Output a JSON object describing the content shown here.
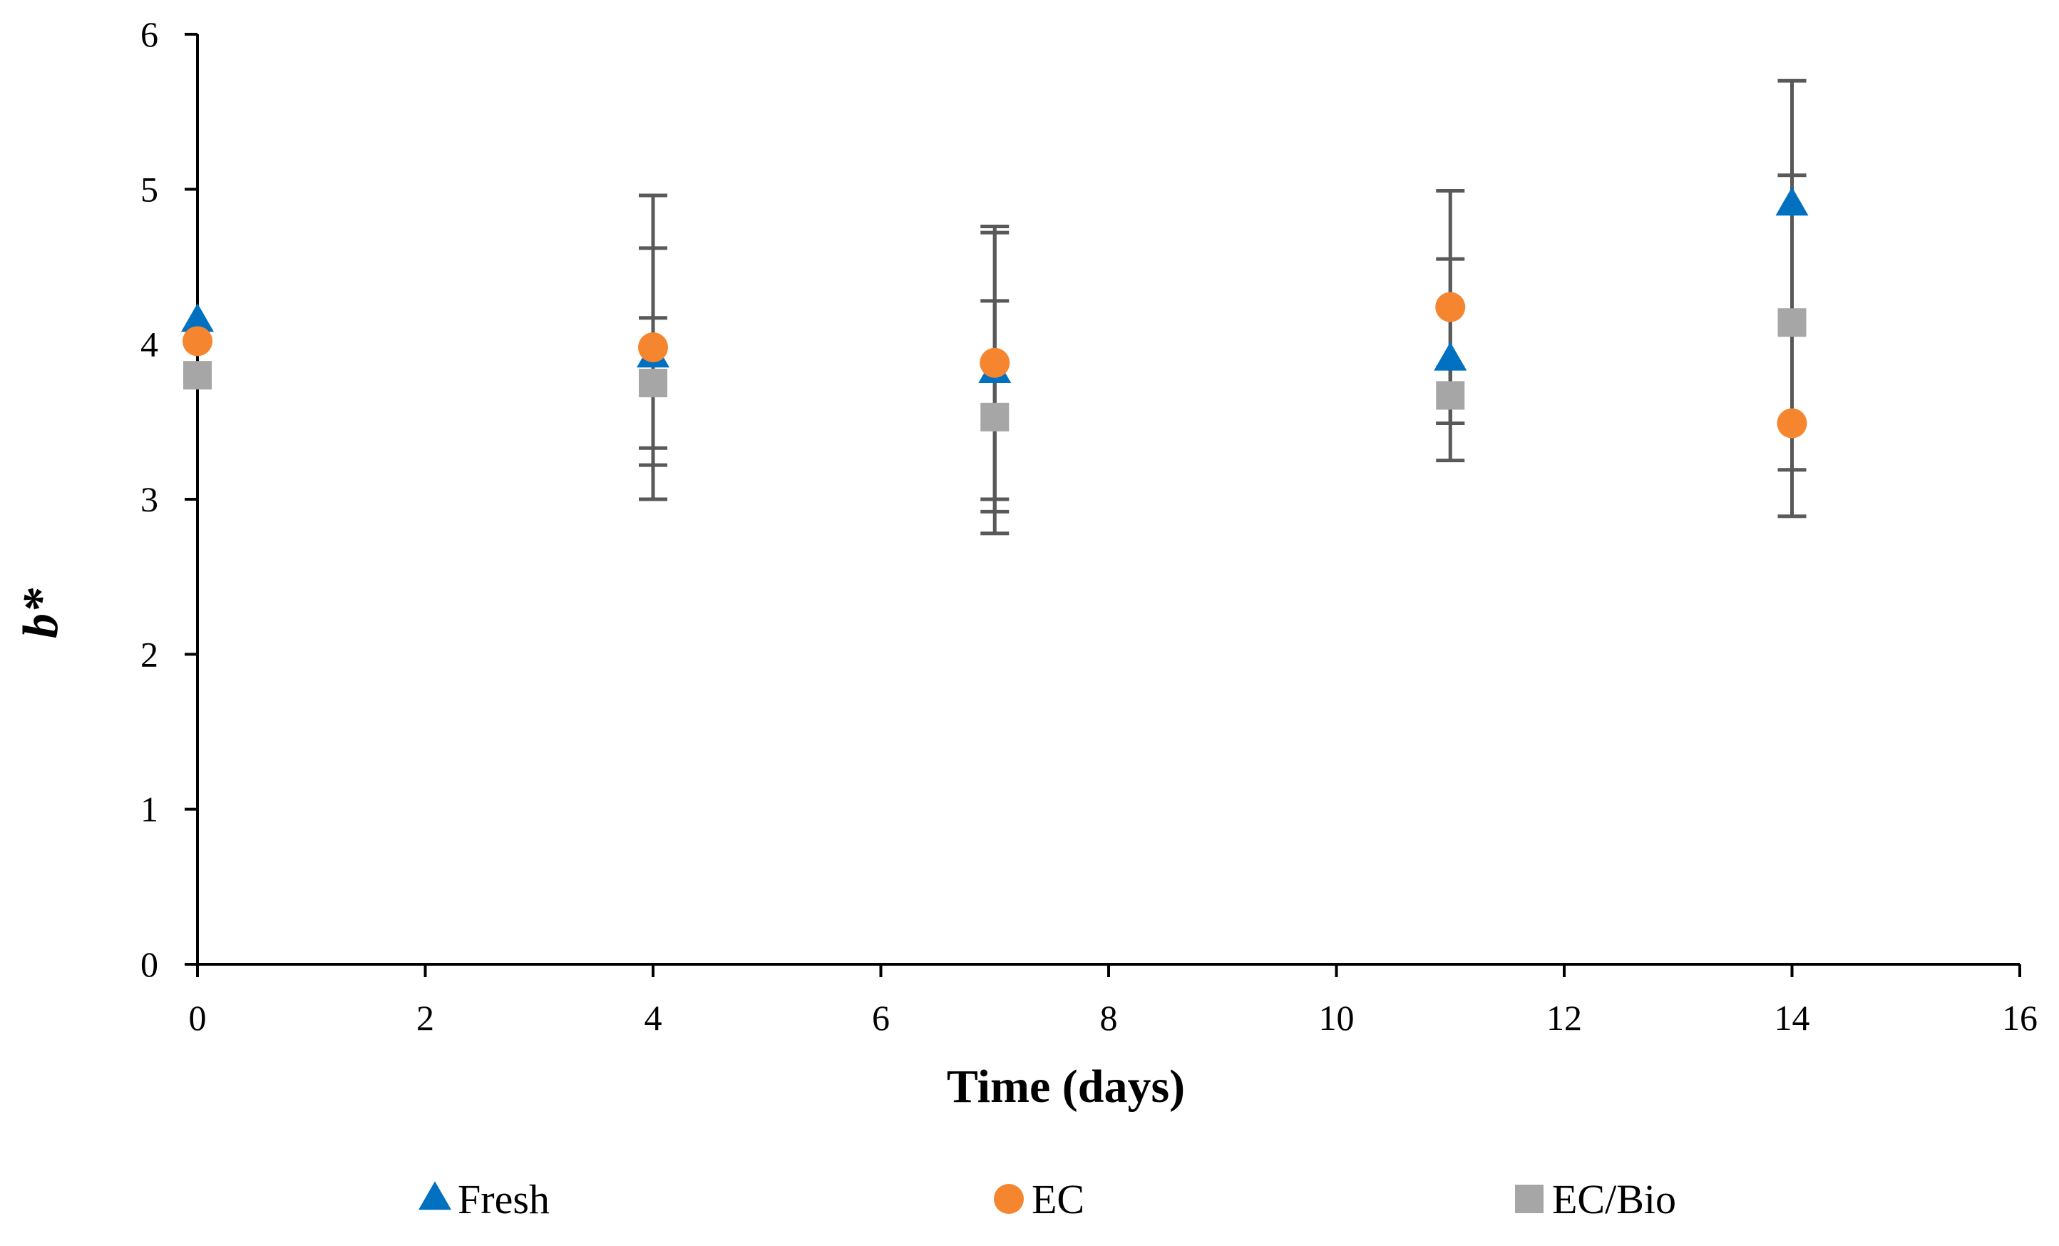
{
  "chart_data": {
    "type": "scatter",
    "title": "",
    "xlabel": "Time (days)",
    "ylabel": "b*",
    "xlim": [
      0,
      16
    ],
    "ylim": [
      0,
      6
    ],
    "x_ticks": [
      0,
      2,
      4,
      6,
      8,
      10,
      12,
      14,
      16
    ],
    "y_ticks": [
      0,
      1,
      2,
      3,
      4,
      5,
      6
    ],
    "grid": false,
    "legend_position": "bottom",
    "series": [
      {
        "name": "Fresh",
        "marker": "triangle",
        "color": "#0070C0",
        "x": [
          0,
          4,
          7,
          11,
          14
        ],
        "y": [
          4.15,
          3.92,
          3.82,
          3.9,
          4.9
        ],
        "error": [
          0.0,
          0.7,
          0.9,
          0.65,
          0.8
        ]
      },
      {
        "name": "EC",
        "marker": "circle",
        "color": "#F5852F",
        "x": [
          0,
          4,
          7,
          11,
          14
        ],
        "y": [
          4.02,
          3.98,
          3.88,
          4.24,
          3.49
        ],
        "error": [
          0.0,
          0.98,
          0.88,
          0.75,
          0.6
        ]
      },
      {
        "name": "EC/Bio",
        "marker": "square",
        "color": "#A6A6A6",
        "x": [
          0,
          4,
          7,
          11,
          14
        ],
        "y": [
          3.8,
          3.75,
          3.53,
          3.67,
          4.14
        ],
        "error": [
          0.0,
          0.42,
          0.75,
          0.18,
          0.95
        ]
      }
    ],
    "error_bar_color": "#595959"
  }
}
